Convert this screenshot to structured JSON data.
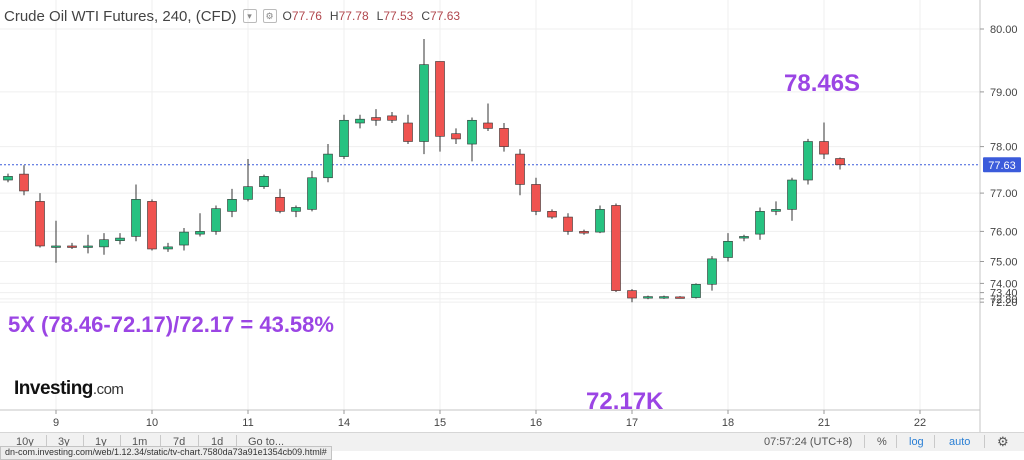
{
  "header": {
    "title": "Crude Oil WTI Futures, 240, (CFD)",
    "ohlc": [
      {
        "k": "O",
        "v": "77.76"
      },
      {
        "k": "H",
        "v": "77.78"
      },
      {
        "k": "L",
        "v": "77.53"
      },
      {
        "k": "C",
        "v": "77.63"
      }
    ]
  },
  "annotations": {
    "peak_label": "78.46S",
    "trough_label": "72.17K",
    "formula": "5X (78.46-72.17)/72.17 = 43.58%"
  },
  "logo": {
    "main": "Investing",
    "suffix": ".com"
  },
  "bottom_bar": {
    "ranges": [
      "10y",
      "3y",
      "1y",
      "1m",
      "7d",
      "1d",
      "Go to..."
    ],
    "clock": "07:57:24 (UTC+8)",
    "percent": "%",
    "log": "log",
    "auto": "auto"
  },
  "status_url": "dn-com.investing.com/web/1.12.34/static/tv-chart.7580da73a91e1354cb09.html#",
  "colors": {
    "up": "#26c281",
    "down": "#ef5350",
    "annotation": "#9b45e4",
    "last_price_line": "#3b5bdb"
  },
  "chart_data": {
    "type": "candlestick",
    "title": "Crude Oil WTI Futures, 240, (CFD)",
    "y_ticks": [
      "72.20",
      "72.80",
      "73.40",
      "74.00",
      "75.00",
      "76.00",
      "77.00",
      "78.00",
      "79.00",
      "80.00"
    ],
    "x_ticks": [
      {
        "label": "9",
        "index": 3
      },
      {
        "label": "10",
        "index": 9
      },
      {
        "label": "11",
        "index": 15
      },
      {
        "label": "14",
        "index": 21
      },
      {
        "label": "15",
        "index": 27
      },
      {
        "label": "16",
        "index": 33
      },
      {
        "label": "17",
        "index": 39
      },
      {
        "label": "18",
        "index": 45
      },
      {
        "label": "21",
        "index": 51
      },
      {
        "label": "22",
        "index": 57
      }
    ],
    "last_price": "77.63",
    "candles": [
      [
        77.3,
        77.44,
        77.25,
        77.38
      ],
      [
        77.43,
        77.62,
        76.95,
        77.05
      ],
      [
        76.8,
        77.0,
        75.5,
        75.55
      ],
      [
        75.52,
        76.3,
        74.95,
        75.55
      ],
      [
        75.55,
        75.65,
        75.45,
        75.5
      ],
      [
        75.55,
        75.9,
        75.3,
        75.55
      ],
      [
        75.52,
        75.95,
        75.25,
        75.75
      ],
      [
        75.72,
        75.95,
        75.6,
        75.8
      ],
      [
        75.85,
        77.2,
        75.7,
        76.85
      ],
      [
        76.8,
        76.85,
        75.4,
        75.45
      ],
      [
        75.45,
        75.65,
        75.35,
        75.52
      ],
      [
        75.58,
        76.1,
        75.4,
        75.98
      ],
      [
        75.92,
        76.5,
        75.85,
        76.0
      ],
      [
        76.0,
        76.7,
        75.9,
        76.62
      ],
      [
        76.55,
        77.1,
        76.4,
        76.85
      ],
      [
        76.85,
        77.75,
        76.8,
        77.15
      ],
      [
        77.15,
        77.42,
        77.1,
        77.38
      ],
      [
        76.9,
        77.1,
        76.5,
        76.55
      ],
      [
        76.55,
        76.7,
        76.4,
        76.65
      ],
      [
        76.6,
        77.5,
        76.55,
        77.35
      ],
      [
        77.35,
        78.05,
        77.25,
        77.85
      ],
      [
        77.8,
        78.6,
        77.75,
        78.5
      ],
      [
        78.45,
        78.6,
        78.35,
        78.52
      ],
      [
        78.55,
        78.7,
        78.4,
        78.5
      ],
      [
        78.58,
        78.65,
        78.45,
        78.5
      ],
      [
        78.45,
        78.6,
        78.05,
        78.1
      ],
      [
        78.1,
        79.85,
        77.85,
        79.45
      ],
      [
        79.5,
        79.5,
        77.9,
        78.2
      ],
      [
        78.25,
        78.35,
        78.05,
        78.15
      ],
      [
        78.05,
        78.55,
        77.7,
        78.5
      ],
      [
        78.45,
        78.8,
        78.3,
        78.35
      ],
      [
        78.35,
        78.45,
        77.9,
        78.0
      ],
      [
        77.85,
        77.95,
        76.95,
        77.2
      ],
      [
        77.2,
        77.35,
        76.45,
        76.55
      ],
      [
        76.55,
        76.6,
        76.35,
        76.4
      ],
      [
        76.4,
        76.5,
        75.9,
        76.0
      ],
      [
        76.0,
        76.05,
        75.9,
        75.95
      ],
      [
        75.98,
        76.7,
        75.95,
        76.6
      ],
      [
        76.7,
        76.75,
        73.45,
        73.55
      ],
      [
        73.55,
        73.65,
        72.17,
        72.9
      ],
      [
        72.9,
        73.15,
        72.75,
        73.05
      ],
      [
        73.0,
        73.15,
        72.8,
        73.05
      ],
      [
        73.02,
        73.1,
        72.95,
        72.98
      ],
      [
        72.95,
        74.0,
        72.85,
        73.95
      ],
      [
        73.95,
        75.2,
        73.55,
        75.1
      ],
      [
        75.15,
        75.95,
        75.0,
        75.7
      ],
      [
        75.8,
        75.9,
        75.7,
        75.85
      ],
      [
        75.92,
        76.65,
        75.75,
        76.55
      ],
      [
        76.55,
        76.8,
        76.45,
        76.6
      ],
      [
        76.6,
        77.35,
        76.3,
        77.3
      ],
      [
        77.3,
        78.15,
        77.2,
        78.1
      ],
      [
        78.1,
        78.46,
        77.75,
        77.85
      ],
      [
        77.76,
        77.78,
        77.53,
        77.63
      ]
    ]
  }
}
